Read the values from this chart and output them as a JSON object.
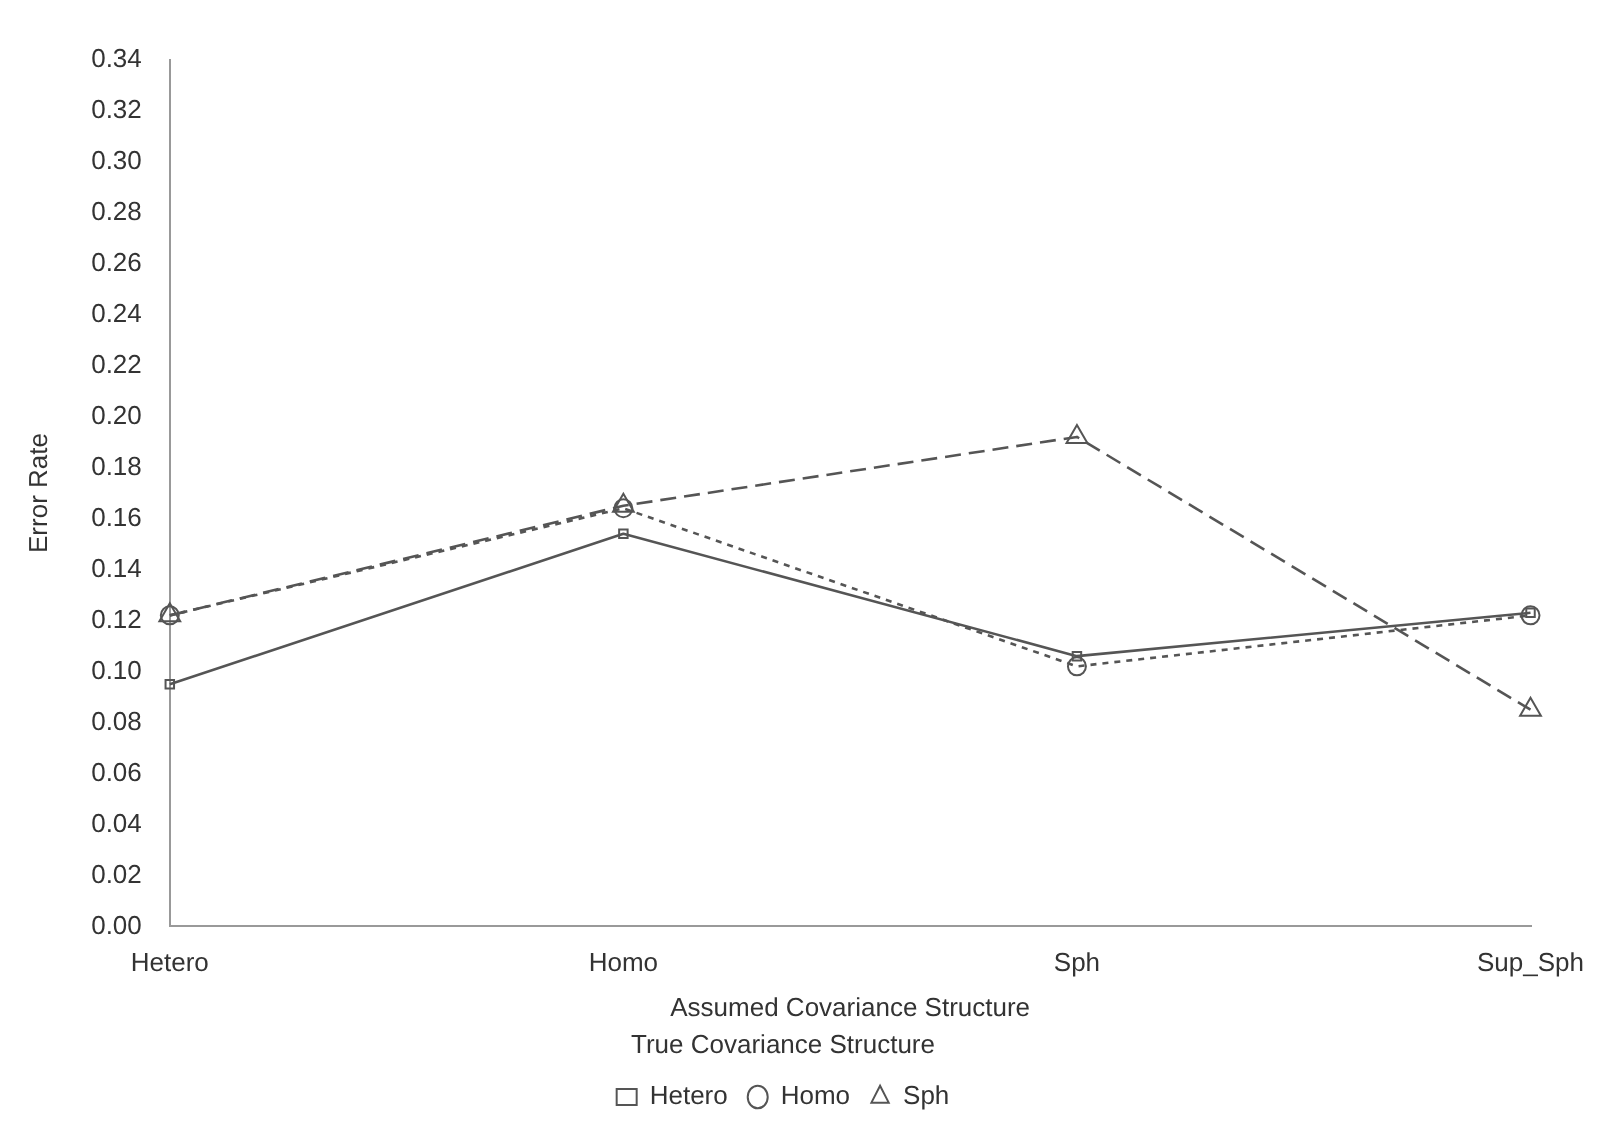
{
  "chart_data": {
    "type": "line",
    "xlabel": "Assumed Covariance Structure",
    "ylabel": "Error Rate",
    "legend_title": "True Covariance Structure",
    "legend": "bottom",
    "grid": false,
    "categories": [
      "Hetero",
      "Homo",
      "Sph",
      "Sup_Sph"
    ],
    "ylim": [
      0,
      0.34
    ],
    "yticks": [
      {
        "value": 0,
        "label": "0.00"
      },
      {
        "value": 0.02,
        "label": "0.02"
      },
      {
        "value": 0.04,
        "label": "0.04"
      },
      {
        "value": 0.06,
        "label": "0.06"
      },
      {
        "value": 0.08,
        "label": "0.08"
      },
      {
        "value": 0.1,
        "label": "0.10"
      },
      {
        "value": 0.12,
        "label": "0.12"
      },
      {
        "value": 0.14,
        "label": "0.14"
      },
      {
        "value": 0.16,
        "label": "0.16"
      },
      {
        "value": 0.18,
        "label": "0.18"
      },
      {
        "value": 0.2,
        "label": "0.20"
      },
      {
        "value": 0.22,
        "label": "0.22"
      },
      {
        "value": 0.24,
        "label": "0.24"
      },
      {
        "value": 0.26,
        "label": "0.26"
      },
      {
        "value": 0.28,
        "label": "0.28"
      },
      {
        "value": 0.3,
        "label": "0.30"
      },
      {
        "value": 0.32,
        "label": "0.32"
      },
      {
        "value": 0.34,
        "label": "0.34"
      }
    ],
    "series": [
      {
        "name": "Hetero",
        "color": "#555555",
        "marker": "square",
        "line_style": "solid",
        "values": [
          0.095,
          0.154,
          0.106,
          0.123
        ]
      },
      {
        "name": "Homo",
        "color": "#555555",
        "marker": "circle",
        "line_style": "dotted",
        "values": [
          0.122,
          0.164,
          0.102,
          0.122
        ]
      },
      {
        "name": "Sph",
        "color": "#555555",
        "marker": "triangle",
        "line_style": "dashed",
        "values": [
          0.122,
          0.165,
          0.192,
          0.085
        ]
      }
    ]
  }
}
